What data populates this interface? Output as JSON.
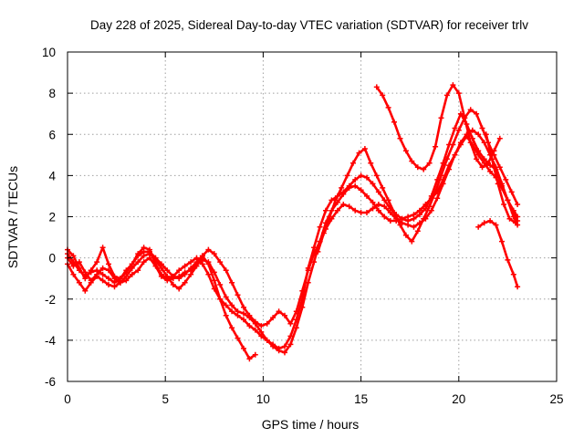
{
  "chart_data": {
    "type": "scatter",
    "title": "Day 228 of 2025, Sidereal Day-to-day VTEC variation (SDTVAR) for receiver trlv",
    "xlabel": "GPS time / hours",
    "ylabel": "SDTVAR / TECUs",
    "xlim": [
      0,
      25
    ],
    "ylim": [
      -6,
      10
    ],
    "xticks": [
      0,
      5,
      10,
      15,
      20,
      25
    ],
    "yticks": [
      -6,
      -4,
      -2,
      0,
      2,
      4,
      6,
      8,
      10
    ],
    "grid": true,
    "color": "#ff0000",
    "marker": "plus",
    "series": [
      {
        "x": [
          0,
          0.3,
          0.6,
          0.9,
          1.2,
          1.5,
          1.8,
          2.1,
          2.4,
          2.7,
          3.0,
          3.3,
          3.6,
          3.9,
          4.2,
          4.5,
          4.8,
          5.1,
          5.4,
          5.7,
          6.0,
          6.3,
          6.6,
          6.9,
          7.2,
          7.5,
          7.8,
          8.1,
          8.4,
          8.7,
          9.0,
          9.3,
          9.6,
          9.9,
          10.2,
          10.5,
          10.8,
          11.1,
          11.4,
          11.7,
          12.0,
          12.3,
          12.6,
          12.9,
          13.2,
          13.5,
          13.8,
          14.1,
          14.4,
          14.7,
          15.0,
          15.3,
          15.6,
          15.9,
          16.2,
          16.5,
          16.8,
          17.1,
          17.4,
          17.7,
          18.0,
          18.3,
          18.6,
          18.9,
          19.2,
          19.5,
          19.8,
          20.1,
          20.4,
          20.7,
          21.0,
          21.3,
          21.6,
          21.9,
          22.2,
          22.5,
          22.8,
          23.0
        ],
        "y": [
          0.4,
          0.1,
          -0.5,
          -1.0,
          -0.6,
          -0.2,
          0.5,
          -0.3,
          -0.9,
          -1.0,
          -0.7,
          -0.3,
          0.2,
          0.5,
          0.4,
          -0.3,
          -0.8,
          -1.0,
          -0.9,
          -0.6,
          -0.4,
          -0.2,
          0.0,
          -0.3,
          -0.8,
          -1.5,
          -2.0,
          -2.3,
          -2.6,
          -2.8,
          -3.0,
          -3.3,
          -3.5,
          -3.8,
          -4.0,
          -4.2,
          -4.4,
          -4.3,
          -3.8,
          -3.0,
          -2.0,
          -0.5,
          0.5,
          1.5,
          2.3,
          2.8,
          3.0,
          3.2,
          3.5,
          3.8,
          4.0,
          3.9,
          3.6,
          3.2,
          2.8,
          2.4,
          2.1,
          1.9,
          1.8,
          1.9,
          2.1,
          2.4,
          3.0,
          3.8,
          4.6,
          5.5,
          6.3,
          7.0,
          6.5,
          5.8,
          5.2,
          4.8,
          4.5,
          4.3,
          3.5,
          2.8,
          2.2,
          1.8
        ]
      },
      {
        "x": [
          0,
          0.3,
          0.6,
          0.9,
          1.2,
          1.5,
          1.8,
          2.1,
          2.4,
          2.7,
          3.0,
          3.3,
          3.6,
          3.9,
          4.2,
          4.5,
          4.8,
          5.1,
          5.4,
          5.7,
          6.0,
          6.3,
          6.6,
          6.9,
          7.2,
          7.5,
          7.8,
          8.1,
          8.4,
          8.7,
          9.0,
          9.3,
          9.6,
          9.9,
          10.2,
          10.5,
          10.8,
          11.1,
          11.4,
          11.7,
          12.0,
          12.3,
          12.6,
          12.9,
          13.2,
          13.5,
          13.8,
          14.1,
          14.4,
          14.7,
          15.0,
          15.3,
          15.6,
          15.9,
          16.2,
          16.5,
          16.8,
          17.1,
          17.4,
          17.7,
          18.0,
          18.3,
          18.6,
          18.9,
          19.2,
          19.5,
          19.8,
          20.1,
          20.4,
          20.7,
          21.0,
          21.3,
          21.6,
          21.9,
          22.2,
          22.5,
          22.8,
          23.0
        ],
        "y": [
          -0.3,
          -0.8,
          -1.2,
          -1.6,
          -1.2,
          -0.9,
          -1.1,
          -1.3,
          -1.4,
          -1.2,
          -0.9,
          -0.5,
          -0.2,
          0.1,
          0.2,
          -0.1,
          -0.5,
          -0.9,
          -1.3,
          -1.5,
          -1.2,
          -0.8,
          -0.4,
          0.1,
          0.4,
          0.2,
          -0.2,
          -0.6,
          -1.2,
          -1.8,
          -2.4,
          -2.8,
          -3.1,
          -3.3,
          -3.2,
          -2.9,
          -2.6,
          -2.8,
          -3.2,
          -2.6,
          -1.6,
          -0.6,
          0.2,
          0.8,
          1.4,
          1.9,
          2.3,
          2.6,
          2.5,
          2.3,
          2.2,
          2.2,
          2.4,
          2.6,
          2.5,
          2.2,
          1.9,
          1.7,
          1.6,
          1.5,
          1.7,
          1.9,
          2.3,
          2.9,
          3.6,
          4.3,
          5.0,
          5.5,
          5.9,
          5.5,
          5.0,
          4.6,
          4.2,
          3.9,
          3.4,
          2.8,
          2.3,
          2.0
        ]
      },
      {
        "x": [
          0,
          0.3,
          0.6,
          0.9,
          1.2,
          1.5,
          1.8,
          2.1,
          2.4,
          2.7,
          3.0,
          3.3,
          3.6,
          3.9,
          4.2,
          4.5,
          4.8,
          5.1,
          5.4,
          5.7,
          6.0,
          6.3,
          6.6,
          6.9,
          7.2,
          7.5,
          7.8,
          8.1,
          8.4,
          8.7,
          9.0,
          9.3,
          9.6,
          9.9,
          10.2,
          10.5,
          10.8,
          11.1,
          11.4,
          11.7,
          12.0,
          12.3,
          12.6,
          12.9,
          13.2,
          13.5,
          13.8,
          14.1,
          14.4,
          14.7,
          15.0,
          15.3,
          15.6,
          15.9,
          16.2,
          16.5,
          16.8,
          17.1,
          17.4,
          17.7,
          18.0,
          18.3,
          18.6,
          18.9,
          19.2,
          19.5,
          19.8,
          20.1,
          20.4,
          20.7,
          21.0,
          21.3,
          21.6,
          21.9,
          22.2,
          22.5,
          22.8,
          23.0
        ],
        "y": [
          0.0,
          -0.4,
          -0.2,
          -0.7,
          -1.1,
          -0.8,
          -0.5,
          -0.6,
          -1.0,
          -1.2,
          -1.1,
          -0.8,
          -0.6,
          -0.2,
          0.0,
          -0.4,
          -0.9,
          -1.1,
          -1.0,
          -0.9,
          -0.7,
          -0.6,
          -0.3,
          -0.1,
          -0.2,
          -0.7,
          -1.3,
          -1.9,
          -2.3,
          -2.6,
          -2.7,
          -2.9,
          -3.2,
          -3.6,
          -4.0,
          -4.3,
          -4.5,
          -4.6,
          -4.2,
          -3.4,
          -2.4,
          -1.2,
          -0.2,
          0.8,
          1.7,
          2.3,
          2.7,
          3.1,
          3.4,
          3.5,
          3.3,
          3.0,
          2.7,
          2.3,
          2.0,
          1.8,
          1.8,
          1.9,
          2.0,
          2.1,
          2.3,
          2.6,
          2.9,
          3.2,
          3.8,
          4.5,
          5.0,
          5.6,
          6.0,
          6.2,
          6.0,
          5.6,
          5.0,
          4.4,
          3.6,
          2.8,
          2.0,
          1.6
        ]
      },
      {
        "x": [
          0,
          0.3,
          0.6,
          0.9,
          1.2,
          1.5,
          1.8,
          2.1,
          2.4,
          2.7,
          3.0,
          3.3,
          3.6,
          3.9,
          4.2,
          4.5,
          4.8,
          5.1,
          5.4,
          5.7,
          6.0,
          6.3,
          6.6,
          6.9,
          7.2,
          7.5,
          7.8,
          8.1,
          8.4,
          8.7,
          9.0,
          9.3,
          9.6
        ],
        "y": [
          0.2,
          -0.2,
          -0.6,
          -0.9,
          -0.7,
          -0.6,
          -0.8,
          -1.0,
          -1.2,
          -1.0,
          -0.6,
          -0.3,
          0.1,
          0.3,
          0.3,
          0.0,
          -0.3,
          -0.6,
          -0.9,
          -1.0,
          -0.8,
          -0.5,
          -0.2,
          0.1,
          -0.3,
          -1.1,
          -2.0,
          -2.8,
          -3.4,
          -3.9,
          -4.4,
          -4.9,
          -4.7
        ]
      },
      {
        "x": [
          12.8,
          13.1,
          13.4,
          13.7,
          14.0,
          14.3,
          14.6,
          14.9,
          15.2,
          15.5,
          15.8,
          16.1,
          16.4,
          16.7,
          17.0,
          17.3,
          17.6,
          17.9,
          18.2,
          18.5,
          18.8,
          19.1,
          19.4,
          19.7,
          20.0,
          20.3,
          20.6,
          20.9,
          21.2,
          21.5,
          21.8,
          22.1,
          22.4,
          22.7,
          23.0
        ],
        "y": [
          0.3,
          1.2,
          2.0,
          2.8,
          3.4,
          4.0,
          4.6,
          5.1,
          5.3,
          4.6,
          4.0,
          3.4,
          2.8,
          2.2,
          1.6,
          1.1,
          0.8,
          1.3,
          1.9,
          2.5,
          3.2,
          4.0,
          4.8,
          5.5,
          6.2,
          6.8,
          7.2,
          7.0,
          6.3,
          5.6,
          5.0,
          4.4,
          3.8,
          3.2,
          2.6
        ]
      },
      {
        "x": [
          15.8,
          16.1,
          16.4,
          16.7,
          17.0,
          17.3,
          17.6,
          17.9,
          18.2,
          18.5,
          18.8,
          19.1,
          19.4,
          19.7,
          20.0,
          20.3,
          20.6,
          20.9,
          21.2,
          21.5,
          21.8,
          22.1
        ],
        "y": [
          8.3,
          7.9,
          7.3,
          6.6,
          5.8,
          5.2,
          4.7,
          4.4,
          4.3,
          4.6,
          5.4,
          6.8,
          7.9,
          8.4,
          8.0,
          6.8,
          5.6,
          4.8,
          4.4,
          4.6,
          5.2,
          5.8
        ]
      },
      {
        "x": [
          21.0,
          21.3,
          21.6,
          21.9,
          22.2,
          22.5,
          22.8,
          23.0
        ],
        "y": [
          1.5,
          1.7,
          1.8,
          1.6,
          0.8,
          -0.1,
          -0.8,
          -1.4
        ]
      },
      {
        "x": [
          21.4,
          21.7,
          22.0,
          22.3,
          22.6,
          22.9
        ],
        "y": [
          6.0,
          4.8,
          3.6,
          2.6,
          1.9,
          1.7
        ]
      }
    ]
  }
}
